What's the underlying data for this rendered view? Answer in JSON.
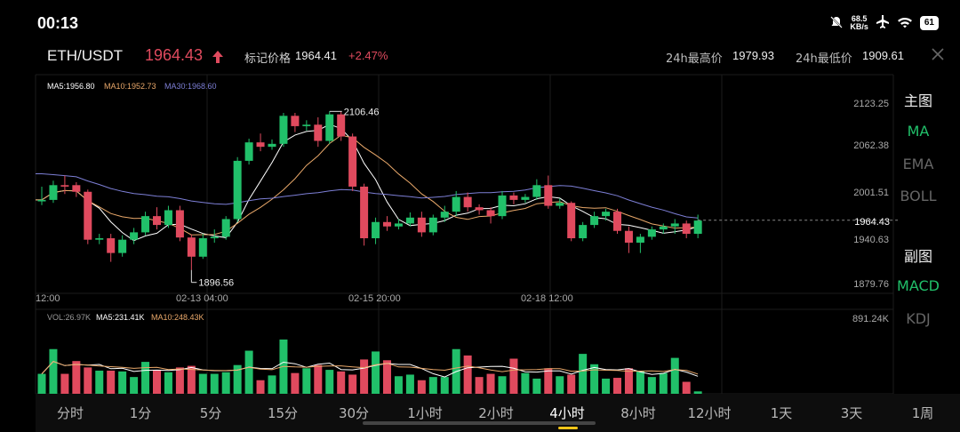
{
  "status": {
    "time": "00:13",
    "net_speed": "68.5",
    "net_unit": "KB/s",
    "battery": "61"
  },
  "header": {
    "pair": "ETH/USDT",
    "price": "1964.43",
    "mark_label": "标记价格",
    "mark_value": "1964.41",
    "change": "+2.47%",
    "high_label": "24h最高价",
    "high_value": "1979.93",
    "low_label": "24h最低价",
    "low_value": "1909.61"
  },
  "legend": {
    "ma5": "MA5:1956.80",
    "ma10": "MA10:1952.73",
    "ma30": "MA30:1968.60"
  },
  "vol_legend": {
    "vol": "VOL:26.97K",
    "ma5": "MA5:231.41K",
    "ma10": "MA10:248.43K"
  },
  "price_axis": [
    "2123.25",
    "2062.38",
    "2001.51",
    "1940.63",
    "1879.76"
  ],
  "price_label": "1964.43",
  "vol_axis": "891.24K",
  "annotations": {
    "high": "2106.46",
    "low": "1896.56"
  },
  "time_axis": [
    "12:00",
    "02-13 04:00",
    "02-15 20:00",
    "02-18 12:00"
  ],
  "sidebar": {
    "main_title": "主图",
    "main_items": [
      "MA",
      "EMA",
      "BOLL"
    ],
    "sub_title": "副图",
    "sub_items": [
      "MACD",
      "KDJ"
    ]
  },
  "tabs": [
    "分时",
    "1分",
    "5分",
    "15分",
    "30分",
    "1小时",
    "2小时",
    "4小时",
    "8小时",
    "12小时",
    "1天",
    "3天",
    "1周"
  ],
  "active_tab": "4小时",
  "colors": {
    "up": "#21c06a",
    "down": "#e04a5e",
    "ma5": "#ffffff",
    "ma10": "#e9a86a",
    "ma30": "#7d7fd6",
    "accent": "#f5c518"
  },
  "chart_data": {
    "type": "candlestick",
    "ylim": [
      1879.76,
      2123.25
    ],
    "candles": [
      {
        "o": 1990,
        "c": 1992,
        "h": 2010,
        "l": 1985
      },
      {
        "o": 1992,
        "c": 2012,
        "h": 2018,
        "l": 1988
      },
      {
        "o": 2012,
        "c": 2010,
        "h": 2025,
        "l": 2000
      },
      {
        "o": 2012,
        "c": 2003,
        "h": 2016,
        "l": 1996
      },
      {
        "o": 2003,
        "c": 1938,
        "h": 2006,
        "l": 1932
      },
      {
        "o": 1938,
        "c": 1940,
        "h": 1946,
        "l": 1932
      },
      {
        "o": 1940,
        "c": 1920,
        "h": 1946,
        "l": 1908
      },
      {
        "o": 1920,
        "c": 1938,
        "h": 1944,
        "l": 1915
      },
      {
        "o": 1938,
        "c": 1948,
        "h": 1954,
        "l": 1932
      },
      {
        "o": 1948,
        "c": 1970,
        "h": 1976,
        "l": 1944
      },
      {
        "o": 1970,
        "c": 1958,
        "h": 1982,
        "l": 1952
      },
      {
        "o": 1958,
        "c": 1978,
        "h": 1984,
        "l": 1954
      },
      {
        "o": 1978,
        "c": 1941,
        "h": 1984,
        "l": 1936
      },
      {
        "o": 1941,
        "c": 1915,
        "h": 1945,
        "l": 1897
      },
      {
        "o": 1915,
        "c": 1940,
        "h": 1946,
        "l": 1912
      },
      {
        "o": 1940,
        "c": 1942,
        "h": 1952,
        "l": 1934
      },
      {
        "o": 1942,
        "c": 1966,
        "h": 1970,
        "l": 1938
      },
      {
        "o": 1966,
        "c": 2045,
        "h": 2050,
        "l": 1962
      },
      {
        "o": 2045,
        "c": 2070,
        "h": 2075,
        "l": 2040
      },
      {
        "o": 2070,
        "c": 2064,
        "h": 2082,
        "l": 2058
      },
      {
        "o": 2064,
        "c": 2068,
        "h": 2074,
        "l": 2060
      },
      {
        "o": 2068,
        "c": 2106,
        "h": 2110,
        "l": 2064
      },
      {
        "o": 2106,
        "c": 2092,
        "h": 2110,
        "l": 2084
      },
      {
        "o": 2092,
        "c": 2094,
        "h": 2100,
        "l": 2086
      },
      {
        "o": 2094,
        "c": 2072,
        "h": 2104,
        "l": 2064
      },
      {
        "o": 2072,
        "c": 2108,
        "h": 2112,
        "l": 2068
      },
      {
        "o": 2108,
        "c": 2078,
        "h": 2112,
        "l": 2072
      },
      {
        "o": 2078,
        "c": 2010,
        "h": 2082,
        "l": 2004
      },
      {
        "o": 2010,
        "c": 1940,
        "h": 2014,
        "l": 1930
      },
      {
        "o": 1940,
        "c": 1962,
        "h": 1968,
        "l": 1932
      },
      {
        "o": 1962,
        "c": 1956,
        "h": 1970,
        "l": 1950
      },
      {
        "o": 1956,
        "c": 1960,
        "h": 1966,
        "l": 1952
      },
      {
        "o": 1960,
        "c": 1968,
        "h": 1975,
        "l": 1956
      },
      {
        "o": 1968,
        "c": 1948,
        "h": 1976,
        "l": 1942
      },
      {
        "o": 1948,
        "c": 1968,
        "h": 1972,
        "l": 1944
      },
      {
        "o": 1968,
        "c": 1976,
        "h": 1984,
        "l": 1962
      },
      {
        "o": 1976,
        "c": 1996,
        "h": 2004,
        "l": 1970
      },
      {
        "o": 1996,
        "c": 1982,
        "h": 2002,
        "l": 1976
      },
      {
        "o": 1982,
        "c": 1978,
        "h": 1986,
        "l": 1972
      },
      {
        "o": 1978,
        "c": 1970,
        "h": 1982,
        "l": 1960
      },
      {
        "o": 1970,
        "c": 1998,
        "h": 2004,
        "l": 1966
      },
      {
        "o": 1998,
        "c": 1992,
        "h": 2002,
        "l": 1986
      },
      {
        "o": 1992,
        "c": 1996,
        "h": 2000,
        "l": 1988
      },
      {
        "o": 1996,
        "c": 2012,
        "h": 2020,
        "l": 1992
      },
      {
        "o": 2012,
        "c": 1984,
        "h": 2025,
        "l": 1980
      },
      {
        "o": 1984,
        "c": 1988,
        "h": 1994,
        "l": 1980
      },
      {
        "o": 1988,
        "c": 1940,
        "h": 1990,
        "l": 1936
      },
      {
        "o": 1940,
        "c": 1958,
        "h": 1962,
        "l": 1936
      },
      {
        "o": 1958,
        "c": 1970,
        "h": 1976,
        "l": 1954
      },
      {
        "o": 1970,
        "c": 1976,
        "h": 1980,
        "l": 1964
      },
      {
        "o": 1976,
        "c": 1950,
        "h": 1980,
        "l": 1946
      },
      {
        "o": 1950,
        "c": 1934,
        "h": 1956,
        "l": 1920
      },
      {
        "o": 1934,
        "c": 1942,
        "h": 1946,
        "l": 1920
      },
      {
        "o": 1942,
        "c": 1952,
        "h": 1956,
        "l": 1938
      },
      {
        "o": 1952,
        "c": 1956,
        "h": 1960,
        "l": 1946
      },
      {
        "o": 1956,
        "c": 1960,
        "h": 1966,
        "l": 1946
      },
      {
        "o": 1960,
        "c": 1946,
        "h": 1964,
        "l": 1940
      },
      {
        "o": 1946,
        "c": 1964,
        "h": 1972,
        "l": 1940
      }
    ],
    "volumes": [
      250,
      560,
      250,
      410,
      330,
      290,
      290,
      280,
      210,
      400,
      300,
      270,
      330,
      350,
      250,
      250,
      270,
      360,
      540,
      170,
      230,
      680,
      260,
      320,
      360,
      300,
      280,
      240,
      430,
      530,
      420,
      220,
      240,
      170,
      210,
      210,
      560,
      480,
      210,
      250,
      220,
      440,
      260,
      190,
      320,
      220,
      240,
      500,
      370,
      190,
      200,
      320,
      290,
      210,
      260,
      450,
      150,
      30
    ]
  }
}
